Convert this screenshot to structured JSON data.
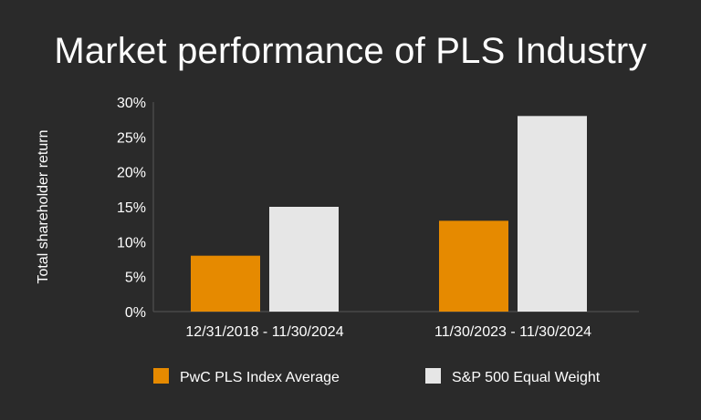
{
  "chart_data": {
    "type": "bar",
    "title": "Market performance of PLS Industry",
    "ylabel": "Total shareholder return",
    "xlabel": "",
    "categories": [
      "12/31/2018 - 11/30/2024",
      "11/30/2023 - 11/30/2024"
    ],
    "series": [
      {
        "name": "PwC PLS Index Average",
        "values": [
          8,
          13
        ],
        "color": "#e68a00"
      },
      {
        "name": "S&P 500 Equal Weight",
        "values": [
          15,
          28
        ],
        "color": "#e6e6e6"
      }
    ],
    "yticks": [
      "0%",
      "5%",
      "10%",
      "15%",
      "20%",
      "25%",
      "30%"
    ],
    "ylim": [
      0,
      30
    ],
    "grid": false,
    "legend_position": "bottom",
    "background": "#2a2a2a"
  }
}
